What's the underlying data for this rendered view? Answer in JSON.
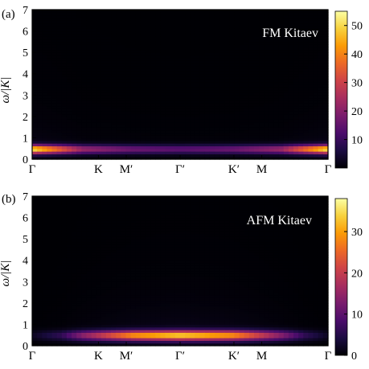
{
  "chart_data": [
    {
      "type": "heatmap",
      "panel_label": "(a)",
      "annotation": "FM Kitaev",
      "ylabel": "ω/|K|",
      "x_tick_labels": [
        "Γ",
        "K",
        "M′",
        "Γ′",
        "K′",
        "M",
        "Γ"
      ],
      "y_ticks": [
        0,
        1,
        2,
        3,
        4,
        5,
        6,
        7
      ],
      "ylim": [
        0,
        7
      ],
      "colorbar": {
        "ticks": [
          10,
          20,
          30,
          40,
          50
        ],
        "range": [
          0,
          55
        ]
      },
      "colormap": [
        "#000004",
        "#1b0c41",
        "#4a0c6b",
        "#781c6d",
        "#a52c60",
        "#cf4446",
        "#ed6925",
        "#fb9b06",
        "#f7d13d",
        "#fcffa4"
      ],
      "band": {
        "omega_center": 0.48,
        "omega_width": 0.14,
        "tail_width": 0.55,
        "x": [
          0.0,
          0.17,
          0.34,
          0.5,
          0.68,
          0.84,
          1.0
        ],
        "peak": [
          50,
          22,
          16,
          14,
          16,
          22,
          50
        ]
      }
    },
    {
      "type": "heatmap",
      "panel_label": "(b)",
      "annotation": "AFM Kitaev",
      "ylabel": "ω/|K|",
      "x_tick_labels": [
        "Γ",
        "K",
        "M′",
        "Γ′",
        "K′",
        "M",
        "Γ"
      ],
      "y_ticks": [
        0,
        1,
        2,
        3,
        4,
        5,
        6,
        7
      ],
      "ylim": [
        0,
        7
      ],
      "colorbar": {
        "ticks": [
          0,
          10,
          20,
          30
        ],
        "range": [
          0,
          38
        ]
      },
      "colormap": [
        "#000004",
        "#1b0c41",
        "#4a0c6b",
        "#781c6d",
        "#a52c60",
        "#cf4446",
        "#ed6925",
        "#fb9b06",
        "#f7d13d",
        "#fcffa4"
      ],
      "band": {
        "omega_center": 0.5,
        "omega_width": 0.16,
        "tail_width": 0.9,
        "x": [
          0.0,
          0.1,
          0.17,
          0.34,
          0.5,
          0.68,
          0.84,
          0.92,
          1.0
        ],
        "peak": [
          2,
          6,
          14,
          28,
          33,
          28,
          14,
          6,
          2
        ]
      }
    }
  ]
}
